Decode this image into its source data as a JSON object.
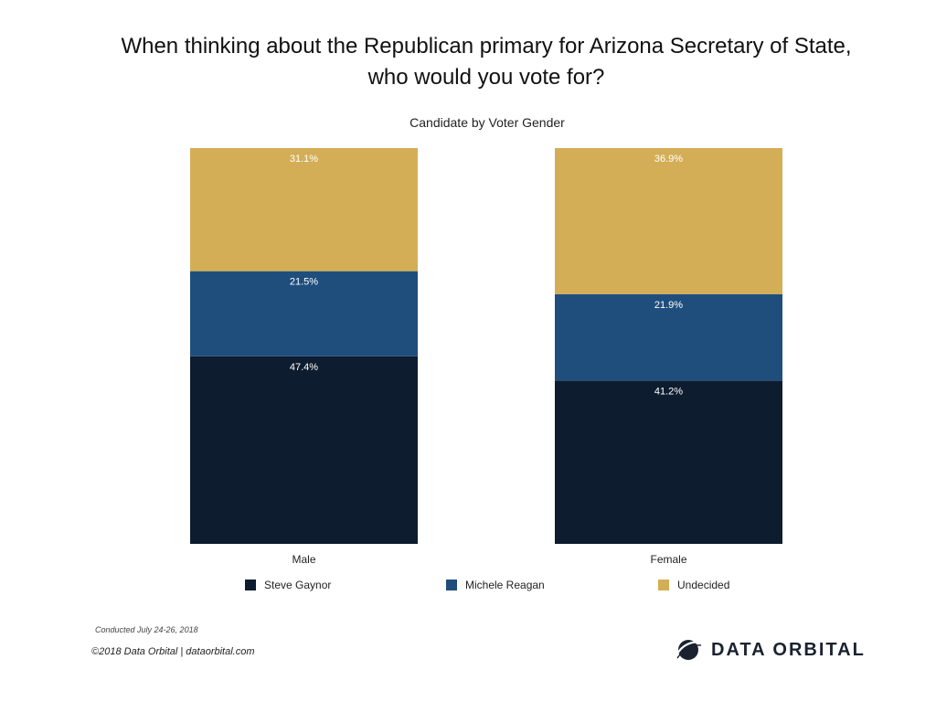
{
  "title": "When thinking about the Republican primary for Arizona Secretary of State, who would you vote for?",
  "subtitle": "Candidate by Voter Gender",
  "chart_data": {
    "type": "bar",
    "stacked": true,
    "categories": [
      "Male",
      "Female"
    ],
    "series": [
      {
        "name": "Steve Gaynor",
        "values": [
          47.4,
          41.2
        ],
        "labels": [
          "47.4%",
          "41.2%"
        ],
        "color": "#0d1c2e"
      },
      {
        "name": "Michele Reagan",
        "values": [
          21.5,
          21.9
        ],
        "labels": [
          "21.5%",
          "21.9%"
        ],
        "color": "#1f4e7d"
      },
      {
        "name": "Undecided",
        "values": [
          31.1,
          36.9
        ],
        "labels": [
          "31.1%",
          "36.9%"
        ],
        "color": "#d4ae56"
      }
    ],
    "legend_position": "bottom",
    "grid": false
  },
  "footer": {
    "conducted": "Conducted July  24-26, 2018",
    "copyright": "©2018 Data Orbital | dataorbital.com"
  },
  "brand": {
    "name": "DATA ORBITAL",
    "icon": "orbital-logo-icon"
  }
}
